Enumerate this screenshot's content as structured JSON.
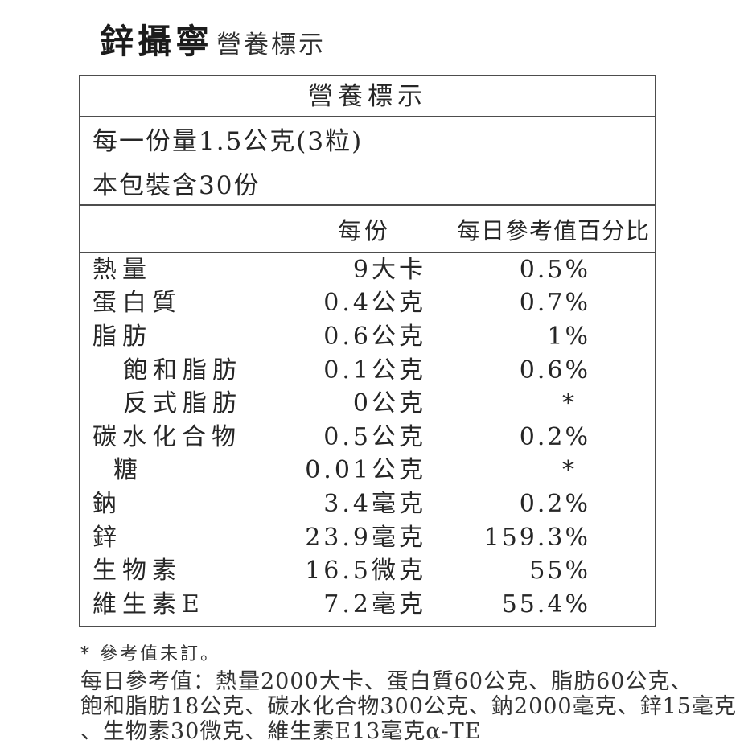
{
  "title": {
    "brand": "鋅攝寧",
    "label": "營養標示"
  },
  "table": {
    "header": "營養標示",
    "serving": {
      "line1": "每一份量1.5公克(3粒)",
      "line2": "本包裝含30份"
    },
    "columns": {
      "per_serving": "每份",
      "daily_value_pct": "每日參考值百分比"
    },
    "rows": [
      {
        "label": "熱量",
        "value": "9大卡",
        "dv": "0.5%"
      },
      {
        "label": "蛋白質",
        "value": "0.4公克",
        "dv": "0.7%"
      },
      {
        "label": "脂肪",
        "value": "0.6公克",
        "dv": "1%"
      },
      {
        "label": "飽和脂肪",
        "value": "0.1公克",
        "dv": "0.6%"
      },
      {
        "label": "反式脂肪",
        "value": "0公克",
        "dv": "*"
      },
      {
        "label": "碳水化合物",
        "value": "0.5公克",
        "dv": "0.2%"
      },
      {
        "label": "糖",
        "value": "0.01公克",
        "dv": "*"
      },
      {
        "label": "鈉",
        "value": "3.4毫克",
        "dv": "0.2%"
      },
      {
        "label": "鋅",
        "value": "23.9毫克",
        "dv": "159.3%"
      },
      {
        "label": "生物素",
        "value": "16.5微克",
        "dv": "55%"
      },
      {
        "label": "維生素E",
        "value": "7.2毫克",
        "dv": "55.4%"
      }
    ]
  },
  "footnotes": {
    "asterisk_note": "* 參考值未訂。",
    "daily_reference_line1": "每日參考值：熱量2000大卡、蛋白質60公克、脂肪60公克、",
    "daily_reference_line2": "飽和脂肪18公克、碳水化合物300公克、鈉2000毫克、鋅15毫克",
    "daily_reference_line3": "、生物素30微克、維生素E13毫克α-TE"
  },
  "colors": {
    "background": "#ffffff",
    "text": "#262626",
    "border": "#4d4d4d"
  }
}
